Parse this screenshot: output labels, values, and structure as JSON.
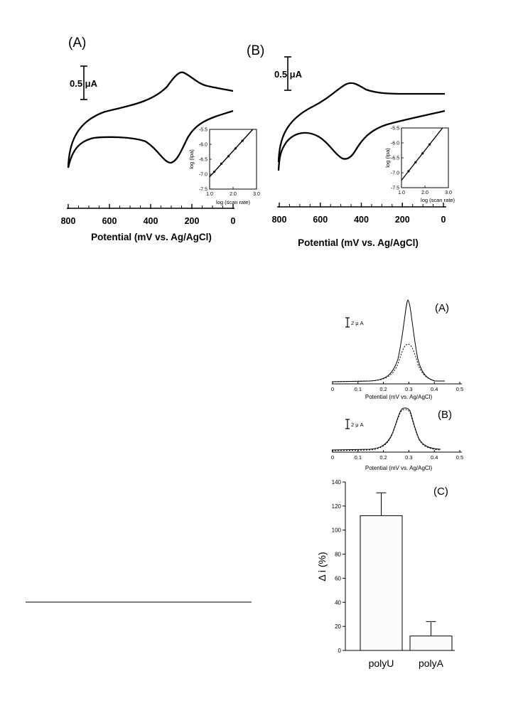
{
  "chart_data": [
    {
      "type": "line",
      "panel_label": "(A)",
      "scale_bar": "0.5 μA",
      "xlabel": "Potential (mV vs. Ag/AgCl)",
      "xticks": [
        "800",
        "600",
        "400",
        "200",
        "0"
      ],
      "xlim": [
        800,
        0
      ],
      "curve": "cyclic voltammogram",
      "anodic_peak_potential_mV": 240,
      "cathodic_peak_potential_mV": 290,
      "inset": {
        "type": "scatter",
        "xlabel": "log (scan rate)",
        "ylabel": "log (Ipa)",
        "xticks": [
          "1.0",
          "2.0",
          "3.0"
        ],
        "yticks": [
          "-5.5",
          "-6.0",
          "-6.5",
          "-7.0",
          "-7.5"
        ],
        "xlim": [
          1.0,
          3.0
        ],
        "ylim": [
          -7.5,
          -5.5
        ],
        "x": [
          1.2,
          1.5,
          1.8,
          2.1,
          2.4
        ],
        "y": [
          -6.92,
          -6.65,
          -6.4,
          -6.14,
          -5.88
        ]
      }
    },
    {
      "type": "line",
      "panel_label": "(B)",
      "scale_bar": "0.5 μA",
      "xlabel": "Potential (mV vs. Ag/AgCl)",
      "xticks": [
        "800",
        "600",
        "400",
        "200",
        "0"
      ],
      "xlim": [
        800,
        0
      ],
      "curve": "cyclic voltammogram",
      "anodic_peak_potential_mV": 450,
      "cathodic_peak_potential_mV": 500,
      "inset": {
        "type": "scatter",
        "xlabel": "log (scan rate)",
        "ylabel": "log (Ipa)",
        "xticks": [
          "1.0",
          "2.0",
          "3.0"
        ],
        "yticks": [
          "-5.5",
          "-6.0",
          "-6.5",
          "-7.0",
          "-7.5"
        ],
        "xlim": [
          1.0,
          3.0
        ],
        "ylim": [
          -7.5,
          -5.5
        ],
        "x": [
          1.3,
          1.6,
          1.9,
          2.2
        ],
        "y": [
          -6.95,
          -6.65,
          -6.35,
          -6.05
        ]
      }
    },
    {
      "type": "line",
      "panel_label": "(A)",
      "scale_bar": "2 μ A",
      "xlabel": "Potential (mV vs. Ag/AgCl)",
      "xticks": [
        "0",
        "0.1",
        "0.2",
        "0.3",
        "0.4",
        "0.5"
      ],
      "xlim": [
        0,
        0.5
      ],
      "series": [
        {
          "style": "solid",
          "peak_x": 0.3,
          "peak_height_uA": 8.4
        },
        {
          "style": "dotted",
          "peak_x": 0.3,
          "peak_height_uA": 3.8
        }
      ]
    },
    {
      "type": "line",
      "panel_label": "(B)",
      "scale_bar": "2 μ A",
      "xlabel": "Potential (mV vs. Ag/AgCl)",
      "xticks": [
        "0",
        "0.1",
        "0.2",
        "0.3",
        "0.4",
        "0.5"
      ],
      "xlim": [
        0,
        0.5
      ],
      "series": [
        {
          "style": "solid",
          "peak_x": 0.3,
          "peak_height_uA": 5.4
        },
        {
          "style": "dotted",
          "peak_x": 0.3,
          "peak_height_uA": 5.3
        }
      ]
    },
    {
      "type": "bar",
      "panel_label": "(C)",
      "ylabel": "Δ i (%)",
      "categories": [
        "polyU",
        "polyA"
      ],
      "values": [
        112,
        12
      ],
      "errors": [
        19,
        12
      ],
      "ylim": [
        0,
        140
      ],
      "yticks": [
        "0",
        "20",
        "40",
        "60",
        "80",
        "100",
        "120",
        "140"
      ]
    }
  ]
}
